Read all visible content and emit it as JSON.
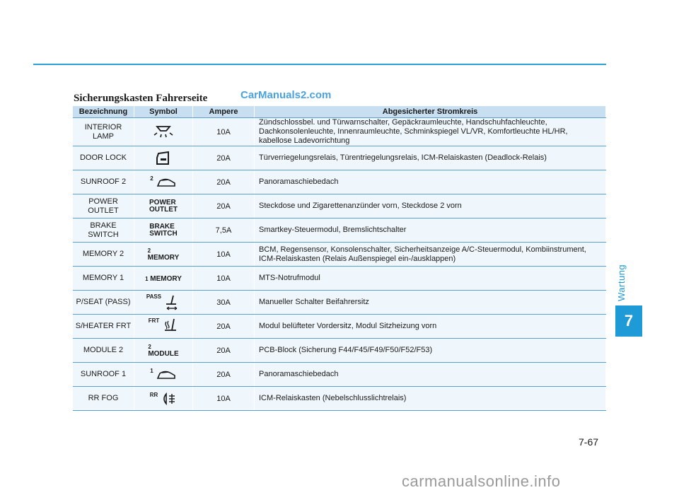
{
  "header": {
    "section_title": "Sicherungskasten Fahrerseite",
    "watermark_top": "CarManuals2.com"
  },
  "sidebar": {
    "label": "Wartung",
    "chapter": "7"
  },
  "footer": {
    "page_number": "7-67",
    "watermark_bottom": "carmanualsonline.info"
  },
  "table": {
    "columns": [
      "Bezeichnung",
      "Symbol",
      "Ampere",
      "Abgesicherter Stromkreis"
    ],
    "rows": [
      {
        "name": "INTERIOR LAMP",
        "symbol": "interior-lamp-icon",
        "ampere": "10A",
        "circuit": "Zündschlossbel. und Türwarnschalter, Gepäckraumleuchte, Handschuhfachleuchte, Dachkonsolenleuchte, Innenraumleuchte, Schminkspiegel VL/VR, Komfortleuchte HL/HR, kabellose Ladevorrichtung"
      },
      {
        "name": "DOOR LOCK",
        "symbol": "door-lock-icon",
        "ampere": "20A",
        "circuit": "Türverriegelungsrelais, Türentriegelungsrelais, ICM-Relaiskasten (Deadlock-Relais)"
      },
      {
        "name": "SUNROOF 2",
        "symbol": "sunroof-icon",
        "symbol_sup": "2",
        "ampere": "20A",
        "circuit": "Panoramaschiebedach"
      },
      {
        "name": "POWER OUTLET",
        "symbol_text": [
          "POWER",
          "OUTLET"
        ],
        "ampere": "20A",
        "circuit": "Steckdose und Zigarettenanzünder vorn, Steckdose 2 vorn"
      },
      {
        "name": "BRAKE SWITCH",
        "symbol_text": [
          "BRAKE",
          "SWITCH"
        ],
        "ampere": "7,5A",
        "circuit": "Smartkey-Steuermodul, Bremslichtschalter"
      },
      {
        "name": "MEMORY 2",
        "symbol_text": [
          "MEMORY"
        ],
        "symbol_sup": "2",
        "ampere": "10A",
        "circuit": "BCM, Regensensor, Konsolenschalter, Sicherheitsanzeige A/C-Steuermodul, Kombiinstrument, ICM-Relaiskasten (Relais Außenspiegel ein-/ausklappen)"
      },
      {
        "name": "MEMORY 1",
        "symbol_text": [
          "MEMORY"
        ],
        "symbol_sup": "1",
        "ampere": "10A",
        "circuit": "MTS-Notrufmodul"
      },
      {
        "name": "P/SEAT (PASS)",
        "symbol": "power-seat-icon",
        "symbol_sup": "PASS",
        "ampere": "30A",
        "circuit": "Manueller Schalter Beifahrersitz"
      },
      {
        "name": "S/HEATER FRT",
        "symbol": "seat-heater-icon",
        "symbol_sup": "FRT",
        "ampere": "20A",
        "circuit": "Modul belüfteter Vordersitz, Modul Sitzheizung vorn"
      },
      {
        "name": "MODULE 2",
        "symbol_text": [
          "MODULE"
        ],
        "symbol_sup": "2",
        "ampere": "20A",
        "circuit": "PCB-Block (Sicherung F44/F45/F49/F50/F52/F53)"
      },
      {
        "name": "SUNROOF 1",
        "symbol": "sunroof-icon",
        "symbol_sup": "1",
        "ampere": "20A",
        "circuit": "Panoramaschiebedach"
      },
      {
        "name": "RR FOG",
        "symbol": "rear-fog-icon",
        "symbol_sup": "RR",
        "ampere": "10A",
        "circuit": "ICM-Relaiskasten (Nebelschlusslichtrelais)"
      }
    ]
  },
  "colors": {
    "accent": "#1e9ad6",
    "header_bg": "#c7dff0",
    "row_bg": "#f0f7fc",
    "rule": "#5b9fcf"
  }
}
